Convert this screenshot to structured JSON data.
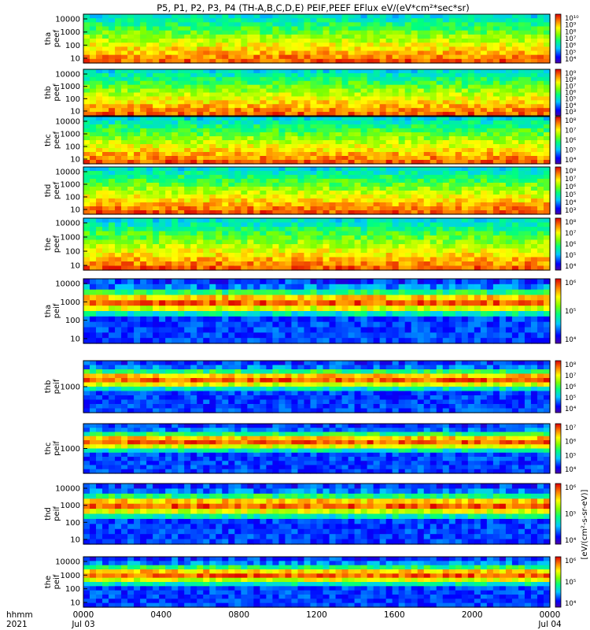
{
  "title": "P5, P1, P2, P3, P4 (TH-A,B,C,D,E) PEIF,PEEF EFlux eV/(eV*cm²*sec*sr)",
  "footer": {
    "row1_label": "hhmm",
    "row2_label": "2021",
    "x_ticks": [
      "0000",
      "0400",
      "0800",
      "1200",
      "1600",
      "2000",
      "0000"
    ],
    "x_dates": [
      "Jul 03",
      "Jul 04"
    ]
  },
  "colorbar_unit": "[eV/(cm²-s-sr-eV)]",
  "chart_data": {
    "type": "heatmap",
    "x_range_hours": [
      0,
      24
    ],
    "y_scale": "log",
    "grid": false,
    "panels": [
      {
        "probe": "tha",
        "instrument": "peef",
        "ylabel": [
          "tha",
          "peef"
        ],
        "yticks": [
          "10000",
          "1000",
          "100",
          "10"
        ],
        "cb_ticks": [
          "10¹⁰",
          "10⁹",
          "10⁸",
          "10⁷",
          "10⁶",
          "10⁵",
          "10⁴"
        ]
      },
      {
        "probe": "thb",
        "instrument": "peef",
        "ylabel": [
          "thb",
          "peef"
        ],
        "yticks": [
          "10000",
          "1000",
          "100",
          "10"
        ],
        "cb_ticks": [
          "10⁹",
          "10⁸",
          "10⁷",
          "10⁶",
          "10⁵",
          "10⁴",
          "10³"
        ]
      },
      {
        "probe": "thc",
        "instrument": "peef",
        "ylabel": [
          "thc",
          "peef"
        ],
        "yticks": [
          "10000",
          "1000",
          "100",
          "10"
        ],
        "cb_ticks": [
          "10⁸",
          "10⁷",
          "10⁶",
          "10⁵",
          "10⁴"
        ]
      },
      {
        "probe": "thd",
        "instrument": "peef",
        "ylabel": [
          "thd",
          "peef"
        ],
        "yticks": [
          "10000",
          "1000",
          "100",
          "10"
        ],
        "cb_ticks": [
          "10⁸",
          "10⁷",
          "10⁶",
          "10⁵",
          "10⁴",
          "10³"
        ]
      },
      {
        "probe": "the",
        "instrument": "peef",
        "ylabel": [
          "the",
          "peef"
        ],
        "yticks": [
          "10000",
          "1000",
          "100",
          "10"
        ],
        "cb_ticks": [
          "10⁸",
          "10⁷",
          "10⁶",
          "10⁵",
          "10⁴"
        ]
      },
      {
        "probe": "tha",
        "instrument": "peif",
        "ylabel": [
          "tha",
          "peif"
        ],
        "yticks": [
          "10000",
          "1000",
          "100",
          "10"
        ],
        "cb_ticks": [
          "10⁶",
          "10⁵",
          "10⁴"
        ]
      },
      {
        "probe": "thb",
        "instrument": "peif",
        "ylabel": [
          "thb",
          "peif"
        ],
        "yticks": [
          "1000"
        ],
        "cb_ticks": [
          "10⁸",
          "10⁷",
          "10⁶",
          "10⁵",
          "10⁴"
        ]
      },
      {
        "probe": "thc",
        "instrument": "peif",
        "ylabel": [
          "thc",
          "peif"
        ],
        "yticks": [
          "1000"
        ],
        "cb_ticks": [
          "10⁷",
          "10⁶",
          "10⁵",
          "10⁴"
        ]
      },
      {
        "probe": "thd",
        "instrument": "peif",
        "ylabel": [
          "thd",
          "peif"
        ],
        "yticks": [
          "10000",
          "1000",
          "100",
          "10"
        ],
        "cb_ticks": [
          "10⁶",
          "10⁵",
          "10⁴"
        ]
      },
      {
        "probe": "the",
        "instrument": "peif",
        "ylabel": [
          "the",
          "peif"
        ],
        "yticks": [
          "10000",
          "1000",
          "100",
          "10"
        ],
        "cb_ticks": [
          "10⁶",
          "10⁵",
          "10⁴"
        ]
      }
    ]
  }
}
